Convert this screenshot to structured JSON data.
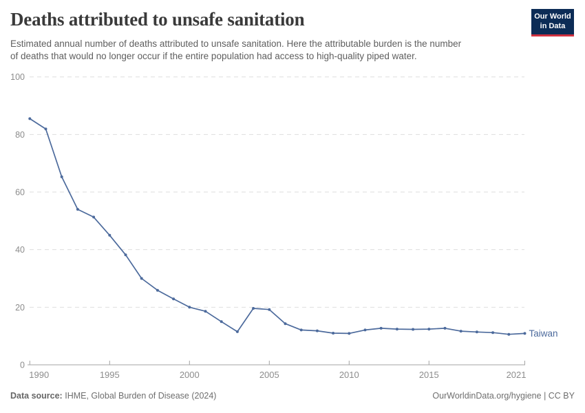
{
  "header": {
    "title": "Deaths attributed to unsafe sanitation",
    "subtitle_lines": [
      "Estimated annual number of deaths attributed to unsafe sanitation. Here the attributable burden is the number",
      "of deaths that would no longer occur if the entire population had access to high-quality piped water."
    ],
    "logo": {
      "line1": "Our World",
      "line2": "in Data"
    }
  },
  "chart_data": {
    "type": "line",
    "title": "Deaths attributed to unsafe sanitation",
    "x": [
      1990,
      1991,
      1992,
      1993,
      1994,
      1995,
      1996,
      1997,
      1998,
      1999,
      2000,
      2001,
      2002,
      2003,
      2004,
      2005,
      2006,
      2007,
      2008,
      2009,
      2010,
      2011,
      2012,
      2013,
      2014,
      2015,
      2016,
      2017,
      2018,
      2019,
      2020,
      2021
    ],
    "series": [
      {
        "name": "Taiwan",
        "color": "#4c6a9c",
        "values": [
          85.5,
          81.9,
          65.3,
          54.0,
          51.3,
          45.0,
          38.2,
          30.0,
          25.9,
          22.9,
          20.0,
          18.6,
          15.0,
          11.5,
          19.6,
          19.2,
          14.3,
          12.1,
          11.8,
          11.0,
          10.9,
          12.1,
          12.7,
          12.4,
          12.3,
          12.4,
          12.7,
          11.7,
          11.4,
          11.2,
          10.6,
          10.9
        ]
      }
    ],
    "ylim": [
      0,
      100
    ],
    "yticks": [
      0,
      20,
      40,
      60,
      80,
      100
    ],
    "xticks": [
      1990,
      1995,
      2000,
      2005,
      2010,
      2015,
      2021
    ],
    "grid": "horizontal-dashed",
    "legend_position": "line-end-label",
    "end_label": "Taiwan"
  },
  "footer": {
    "source_label": "Data source:",
    "source_text": "IHME, Global Burden of Disease (2024)",
    "credit": "OurWorldinData.org/hygiene | CC BY"
  },
  "colors": {
    "line": "#4c6a9c",
    "grid": "#dedede",
    "axis": "#a3a3a3",
    "tick_label": "#8c8c8c",
    "logo_bg": "#0c2c56",
    "logo_accent": "#d03140"
  }
}
